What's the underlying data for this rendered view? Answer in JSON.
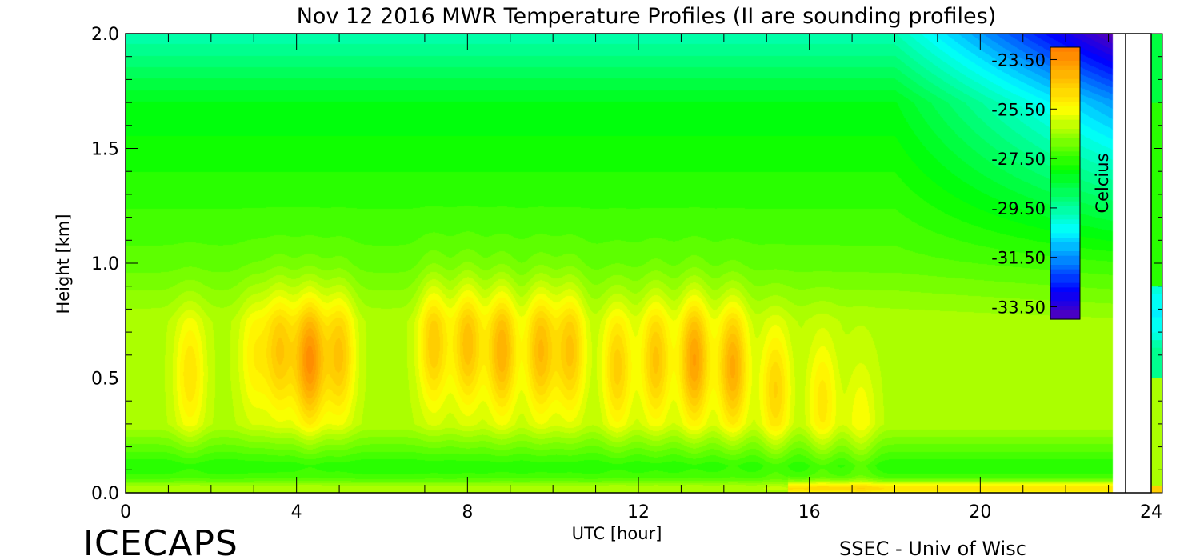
{
  "chart_data": {
    "type": "heatmap",
    "title": "Nov 12 2016 MWR Temperature Profiles (II are sounding profiles)",
    "xlabel": "UTC [hour]",
    "ylabel": "Height [km]",
    "x_ticks": [
      "0",
      "4",
      "8",
      "12",
      "16",
      "20",
      "24"
    ],
    "y_ticks": [
      "0.0",
      "0.5",
      "1.0",
      "1.5",
      "2.0"
    ],
    "xlim": [
      0,
      24
    ],
    "ylim": [
      0,
      2.0
    ],
    "data_end_hour": 23.1,
    "colorbar": {
      "label": "Celcius",
      "ticks": [
        "-23.50",
        "-25.50",
        "-27.50",
        "-29.50",
        "-31.50",
        "-33.50"
      ],
      "range": [
        -34.0,
        -23.0
      ],
      "colors": [
        "#5a00b4",
        "#0000ff",
        "#0080ff",
        "#00ffff",
        "#00ff80",
        "#00ff00",
        "#80ff00",
        "#ffff00",
        "#ffc000",
        "#ff8000"
      ]
    },
    "warm_cores": [
      {
        "hour": 1.5,
        "height_km": 0.52,
        "temp_c": -24.9
      },
      {
        "hour": 3.0,
        "height_km": 0.6,
        "temp_c": -25.2
      },
      {
        "hour": 3.6,
        "height_km": 0.62,
        "temp_c": -24.4
      },
      {
        "hour": 4.3,
        "height_km": 0.58,
        "temp_c": -23.3
      },
      {
        "hour": 5.0,
        "height_km": 0.6,
        "temp_c": -24.3
      },
      {
        "hour": 7.2,
        "height_km": 0.65,
        "temp_c": -24.4
      },
      {
        "hour": 8.0,
        "height_km": 0.65,
        "temp_c": -24.2
      },
      {
        "hour": 8.8,
        "height_km": 0.62,
        "temp_c": -23.9
      },
      {
        "hour": 9.7,
        "height_km": 0.62,
        "temp_c": -24.1
      },
      {
        "hour": 10.4,
        "height_km": 0.62,
        "temp_c": -24.3
      },
      {
        "hour": 11.5,
        "height_km": 0.55,
        "temp_c": -24.5
      },
      {
        "hour": 12.4,
        "height_km": 0.58,
        "temp_c": -24.3
      },
      {
        "hour": 13.3,
        "height_km": 0.58,
        "temp_c": -23.6
      },
      {
        "hour": 14.2,
        "height_km": 0.55,
        "temp_c": -23.8
      },
      {
        "hour": 15.2,
        "height_km": 0.45,
        "temp_c": -24.6
      },
      {
        "hour": 16.3,
        "height_km": 0.4,
        "temp_c": -25.0
      },
      {
        "hour": 17.2,
        "height_km": 0.3,
        "temp_c": -25.4
      }
    ],
    "surface_warm_layer": [
      {
        "hour_start": 0,
        "hour_end": 23.1,
        "height_km": 0.02,
        "temp_c": -25.2
      },
      {
        "hour_start": 15.5,
        "hour_end": 23.1,
        "height_km": 0.02,
        "temp_c": -24.6
      }
    ]
  },
  "footer": {
    "logo": "ICECAPS",
    "credit": "SSEC - Univ of Wisc"
  }
}
